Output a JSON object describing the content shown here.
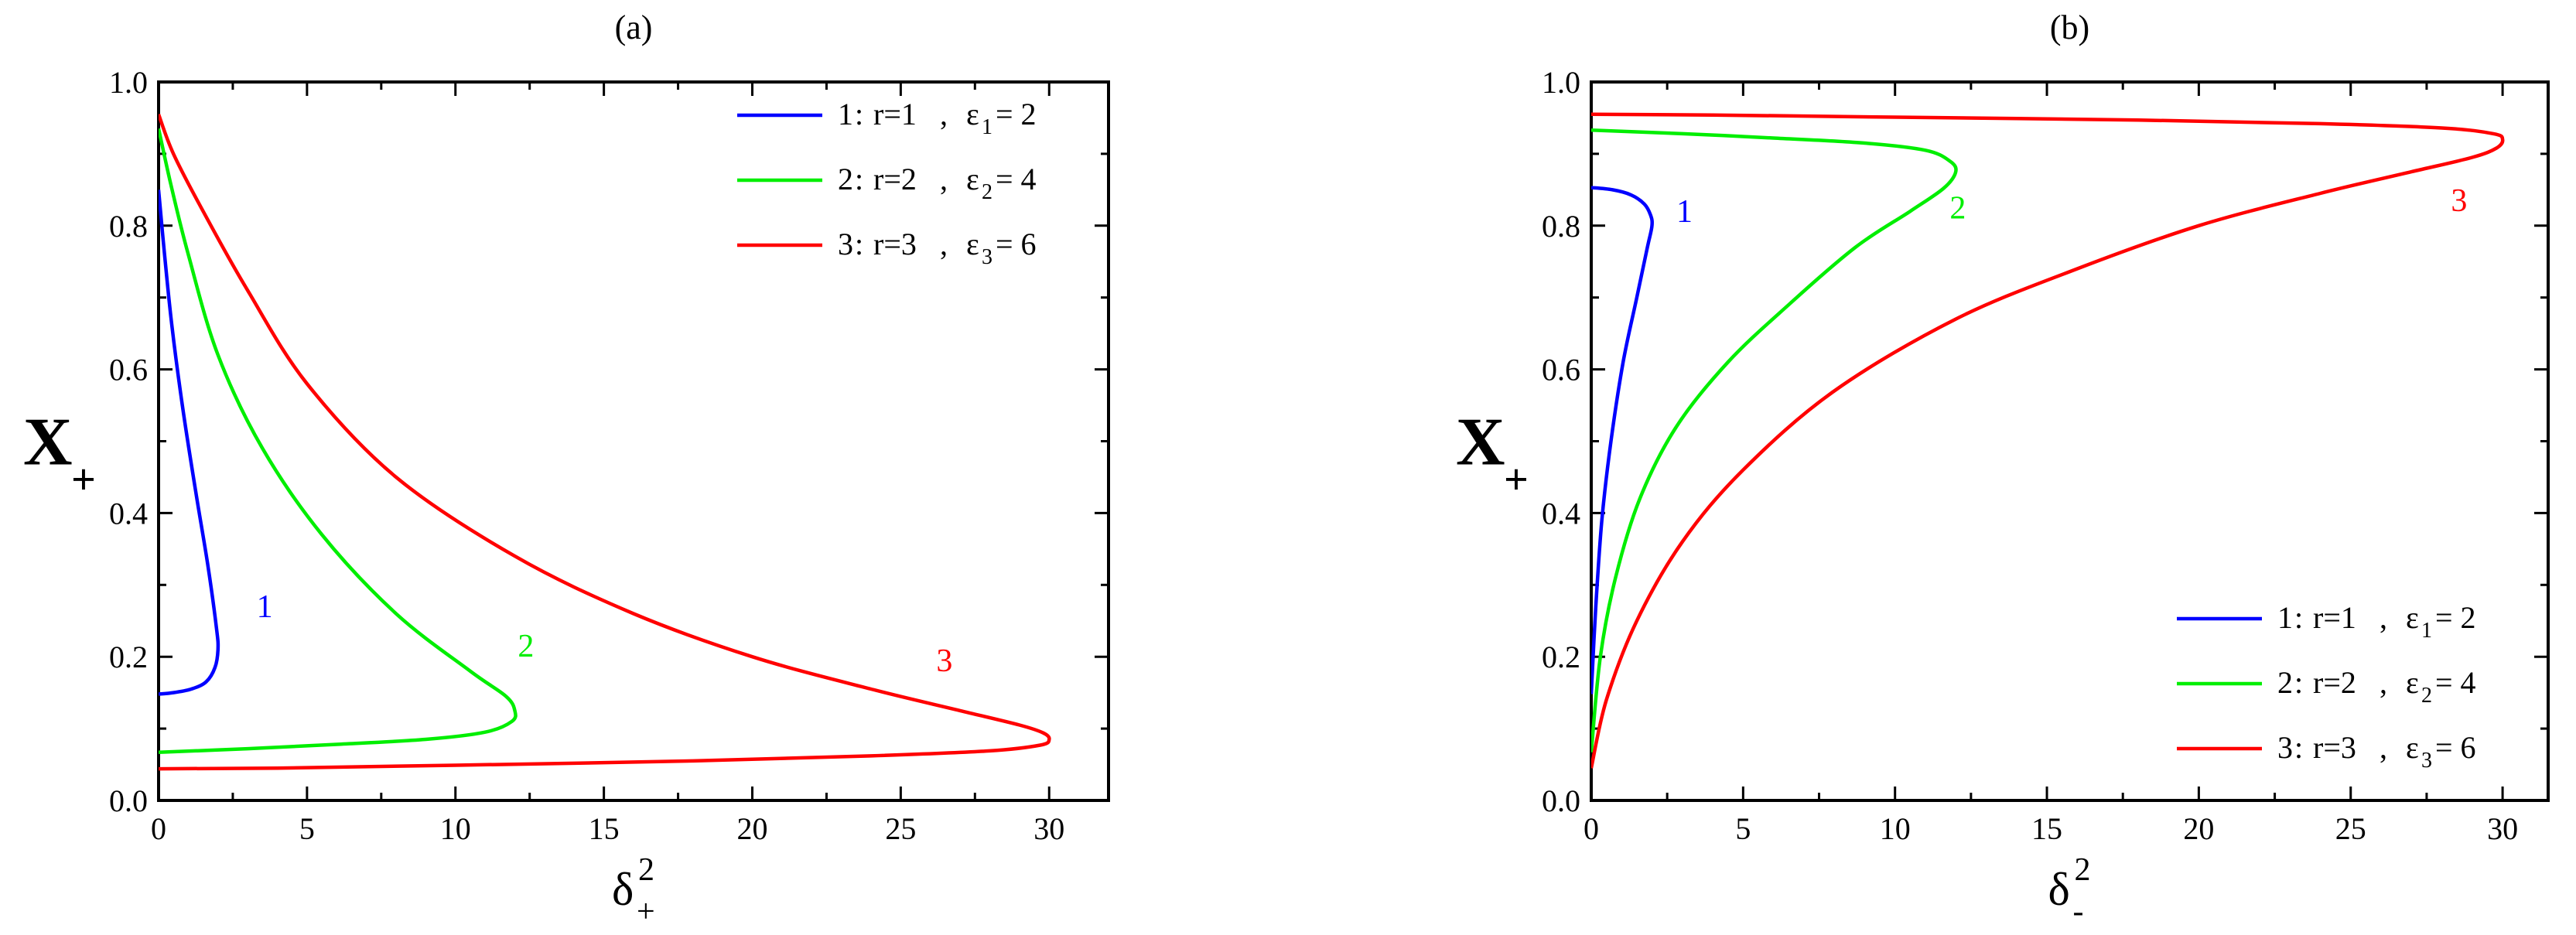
{
  "chart_data": [
    {
      "type": "line",
      "panel_label": "(a)",
      "ylabel": {
        "symbol": "X",
        "sub": "+"
      },
      "xlabel": {
        "symbol": "δ",
        "sub": "+",
        "sup": "2"
      },
      "xlim": [
        0,
        32
      ],
      "ylim": [
        0.0,
        1.0
      ],
      "xticks": [
        "0",
        "5",
        "10",
        "15",
        "20",
        "25",
        "30"
      ],
      "yticks": [
        "0.0",
        "0.2",
        "0.4",
        "0.6",
        "0.8",
        "1.0"
      ],
      "legend": {
        "position": "top-right",
        "entries": [
          {
            "num": "1",
            "r": "r=1",
            "eps": "ε",
            "eps_sub": "1",
            "val": "= 2"
          },
          {
            "num": "2",
            "r": "r=2",
            "eps": "ε",
            "eps_sub": "2",
            "val": "= 4"
          },
          {
            "num": "3",
            "r": "r=3",
            "eps": "ε",
            "eps_sub": "3",
            "val": "= 6"
          }
        ]
      },
      "series": [
        {
          "color": "#0000ff",
          "label": "1",
          "x": [
            0,
            0.2,
            0.45,
            0.8,
            1.25,
            1.65,
            1.95,
            2.0,
            1.9,
            1.6,
            1.1,
            0.5,
            0
          ],
          "y": [
            0.85,
            0.76,
            0.66,
            0.55,
            0.43,
            0.33,
            0.24,
            0.21,
            0.185,
            0.165,
            0.155,
            0.15,
            0.148
          ]
        },
        {
          "color": "#00ee00",
          "label": "2",
          "x": [
            0,
            0.4,
            1.0,
            2.0,
            3.5,
            5.5,
            8.0,
            10.5,
            11.7,
            12.0,
            11.9,
            11.0,
            9.0,
            6.0,
            3.0,
            0
          ],
          "y": [
            0.935,
            0.86,
            0.76,
            0.62,
            0.49,
            0.37,
            0.26,
            0.18,
            0.145,
            0.125,
            0.11,
            0.095,
            0.085,
            0.078,
            0.072,
            0.067
          ]
        },
        {
          "color": "#ff0000",
          "label": "3",
          "x": [
            0,
            0.5,
            1.5,
            3.0,
            5.0,
            8.0,
            12.0,
            16.0,
            20.0,
            24.0,
            27.0,
            29.0,
            29.8,
            30.0,
            29.7,
            28.0,
            24.0,
            18.0,
            10.0,
            4.0,
            0
          ],
          "y": [
            0.955,
            0.9,
            0.82,
            0.71,
            0.58,
            0.45,
            0.34,
            0.26,
            0.2,
            0.155,
            0.125,
            0.105,
            0.094,
            0.085,
            0.077,
            0.069,
            0.062,
            0.055,
            0.049,
            0.045,
            0.044
          ]
        }
      ],
      "curve_labels": [
        {
          "text": "1",
          "color": "#0000ff",
          "x": 3.3,
          "y": 0.255
        },
        {
          "text": "2",
          "color": "#00ee00",
          "x": 12.1,
          "y": 0.2
        },
        {
          "text": "3",
          "color": "#ff0000",
          "x": 26.2,
          "y": 0.18
        }
      ]
    },
    {
      "type": "line",
      "panel_label": "(b)",
      "ylabel": {
        "symbol": "X",
        "sub": "+"
      },
      "xlabel": {
        "symbol": "δ",
        "sub": "-",
        "sup": "2"
      },
      "xlim": [
        0,
        31.5
      ],
      "ylim": [
        0.0,
        1.0
      ],
      "xticks": [
        "0",
        "5",
        "10",
        "15",
        "20",
        "25",
        "30"
      ],
      "yticks": [
        "0.0",
        "0.2",
        "0.4",
        "0.6",
        "0.8",
        "1.0"
      ],
      "legend": {
        "position": "bottom-right",
        "entries": [
          {
            "num": "1",
            "r": "r=1",
            "eps": "ε",
            "eps_sub": "1",
            "val": "= 2"
          },
          {
            "num": "2",
            "r": "r=2",
            "eps": "ε",
            "eps_sub": "2",
            "val": "= 4"
          },
          {
            "num": "3",
            "r": "r=3",
            "eps": "ε",
            "eps_sub": "3",
            "val": "= 6"
          }
        ]
      },
      "series": [
        {
          "color": "#0000ff",
          "label": "1",
          "x": [
            0,
            0.15,
            0.35,
            0.65,
            1.05,
            1.5,
            1.85,
            2.0,
            1.95,
            1.75,
            1.3,
            0.7,
            0
          ],
          "y": [
            0.148,
            0.27,
            0.39,
            0.5,
            0.61,
            0.7,
            0.77,
            0.8,
            0.815,
            0.83,
            0.843,
            0.85,
            0.853
          ]
        },
        {
          "color": "#00ee00",
          "label": "2",
          "x": [
            0,
            0.3,
            0.8,
            1.6,
            2.8,
            4.5,
            6.5,
            8.7,
            10.5,
            11.6,
            12.0,
            11.8,
            11.0,
            9.0,
            6.0,
            3.0,
            0
          ],
          "y": [
            0.067,
            0.2,
            0.31,
            0.42,
            0.52,
            0.61,
            0.69,
            0.77,
            0.82,
            0.852,
            0.875,
            0.89,
            0.905,
            0.915,
            0.922,
            0.928,
            0.933
          ]
        },
        {
          "color": "#ff0000",
          "label": "3",
          "x": [
            0,
            0.5,
            1.5,
            3.0,
            5.0,
            8.0,
            12.0,
            16.0,
            20.0,
            24.0,
            27.0,
            29.0,
            29.8,
            30.0,
            29.7,
            28.0,
            24.0,
            18.0,
            10.0,
            4.0,
            0
          ],
          "y": [
            0.045,
            0.14,
            0.25,
            0.36,
            0.46,
            0.57,
            0.67,
            0.74,
            0.8,
            0.845,
            0.875,
            0.895,
            0.908,
            0.92,
            0.928,
            0.936,
            0.942,
            0.947,
            0.951,
            0.954,
            0.955
          ]
        }
      ],
      "curve_labels": [
        {
          "text": "1",
          "color": "#0000ff",
          "x": 2.8,
          "y": 0.805
        },
        {
          "text": "2",
          "color": "#00ee00",
          "x": 11.8,
          "y": 0.81
        },
        {
          "text": "3",
          "color": "#ff0000",
          "x": 28.3,
          "y": 0.82
        }
      ]
    }
  ]
}
